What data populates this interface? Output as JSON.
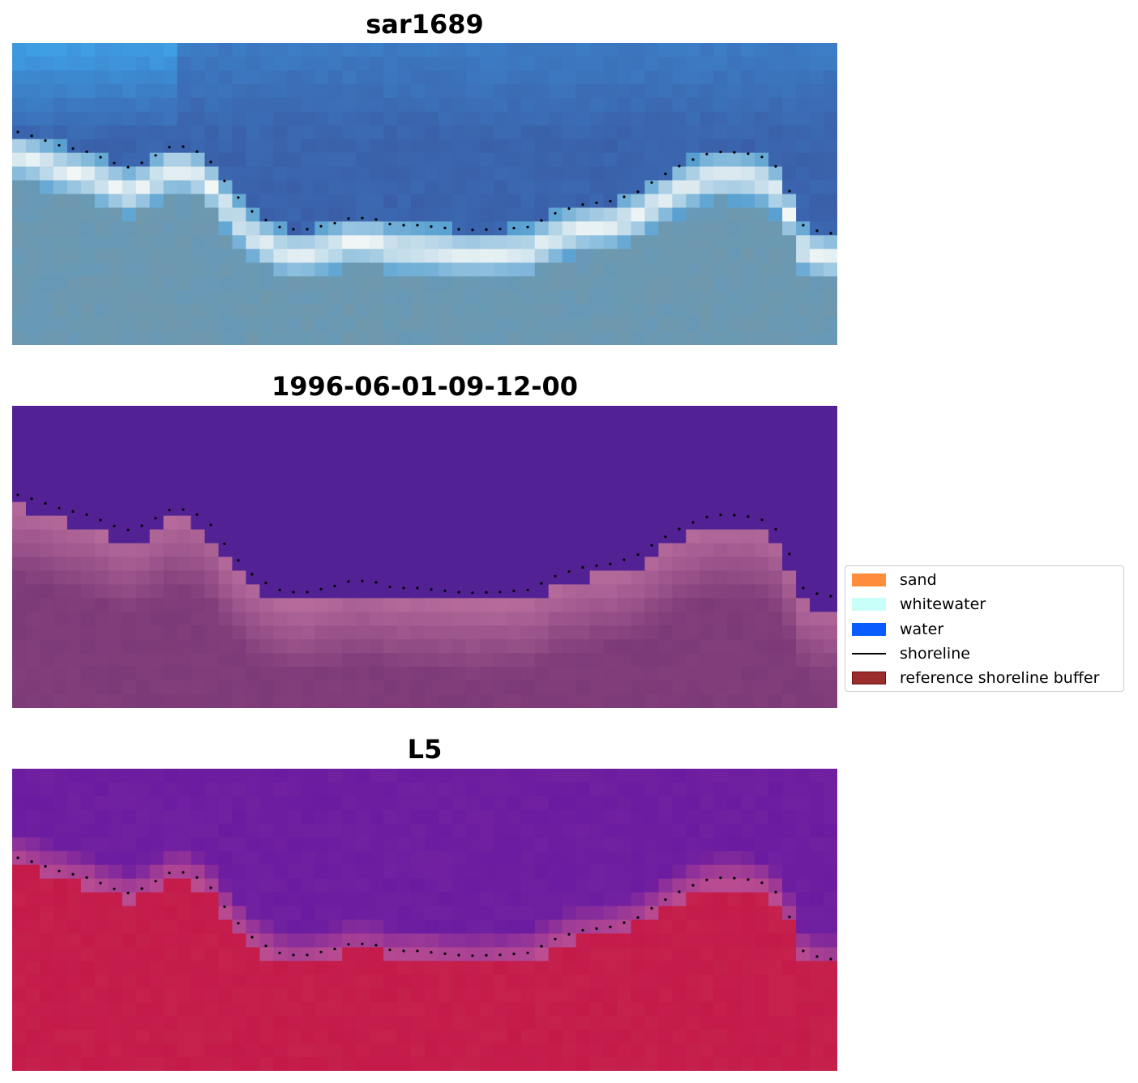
{
  "panels": [
    {
      "title": "sar1689",
      "style": "rgb"
    },
    {
      "title": "1996-06-01-09-12-00",
      "style": "classified"
    },
    {
      "title": "L5",
      "style": "index"
    }
  ],
  "legend": {
    "items": [
      {
        "label": "sand",
        "color": "#ff8c3a",
        "kind": "patch"
      },
      {
        "label": "whitewater",
        "color": "#c8fff8",
        "kind": "patch"
      },
      {
        "label": "water",
        "color": "#0a5cff",
        "kind": "patch"
      },
      {
        "label": "shoreline",
        "color": "#000000",
        "kind": "line"
      },
      {
        "label": "reference shoreline buffer",
        "color": "#9b2d2d",
        "kind": "patch"
      }
    ]
  },
  "colors": {
    "rgb_water_deep": "#3a5fa8",
    "rgb_water_light": "#3fa0e6",
    "rgb_whitewater": "#f4f8f6",
    "rgb_land": "#6f98ad",
    "class_water": "#522294",
    "class_land": "#7d3a78",
    "class_land_light": "#b86d9d",
    "index_water": "#6a1ba0",
    "index_land": "#c41a4a",
    "shoreline": "#000000"
  }
}
